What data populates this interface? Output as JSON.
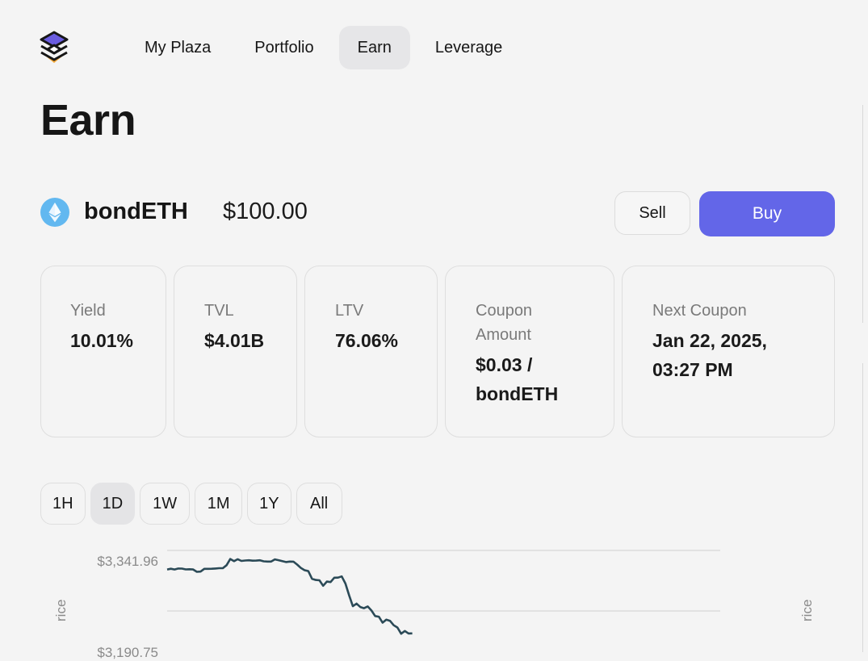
{
  "nav": {
    "items": [
      {
        "label": "My Plaza",
        "active": false
      },
      {
        "label": "Portfolio",
        "active": false
      },
      {
        "label": "Earn",
        "active": true
      },
      {
        "label": "Leverage",
        "active": false
      }
    ]
  },
  "page": {
    "title": "Earn"
  },
  "asset": {
    "icon": "ethereum-icon",
    "name": "bondETH",
    "price": "$100.00",
    "sell_label": "Sell",
    "buy_label": "Buy"
  },
  "stats": [
    {
      "label": "Yield",
      "value": "10.01%"
    },
    {
      "label": "TVL",
      "value": "$4.01B"
    },
    {
      "label": "LTV",
      "value": "76.06%"
    },
    {
      "label": "Coupon Amount",
      "value": "$0.03 / bondETH"
    },
    {
      "label": "Next Coupon",
      "value": "Jan 22, 2025, 03:27 PM"
    }
  ],
  "ranges": [
    {
      "label": "1H",
      "active": false
    },
    {
      "label": "1D",
      "active": true
    },
    {
      "label": "1W",
      "active": false
    },
    {
      "label": "1M",
      "active": false
    },
    {
      "label": "1Y",
      "active": false
    },
    {
      "label": "All",
      "active": false
    }
  ],
  "colors": {
    "accent": "#6366e8",
    "line": "#2b4a57",
    "eth": "#62b8f0"
  },
  "chart_data": {
    "type": "line",
    "y_ticks": [
      "$3,341.96",
      "$3,190.75"
    ],
    "ylabel_left": "rice",
    "ylabel_right": "rice",
    "series": [
      {
        "values": [
          3330.5,
          3331.7,
          3330.5,
          3332.1,
          3331.9,
          3330.6,
          3330.8,
          3330.5,
          3326.6,
          3327.0,
          3331.5,
          3331.5,
          3331.6,
          3332.0,
          3332.6,
          3332.6,
          3337.6,
          3347.8,
          3344.2,
          3347.5,
          3344.7,
          3345.3,
          3345.7,
          3345.1,
          3345.2,
          3345.7,
          3344.0,
          3343.6,
          3343.6,
          3347.2,
          3345.9,
          3344.3,
          3342.8,
          3343.5,
          3343.4,
          3338.6,
          3333.0,
          3329.3,
          3327.8,
          3315.1,
          3313.1,
          3312.5,
          3303.4,
          3310.4,
          3309.6,
          3316.8,
          3317.0,
          3318.9,
          3307.2,
          3287.5,
          3269.6,
          3273.8,
          3268.2,
          3266.2,
          3269.1,
          3262.5,
          3253.3,
          3252.2,
          3242.3,
          3247.2,
          3245.4,
          3238.0,
          3234.3,
          3223.9,
          3228.5,
          3224.4,
          3224.5
        ]
      }
    ]
  }
}
